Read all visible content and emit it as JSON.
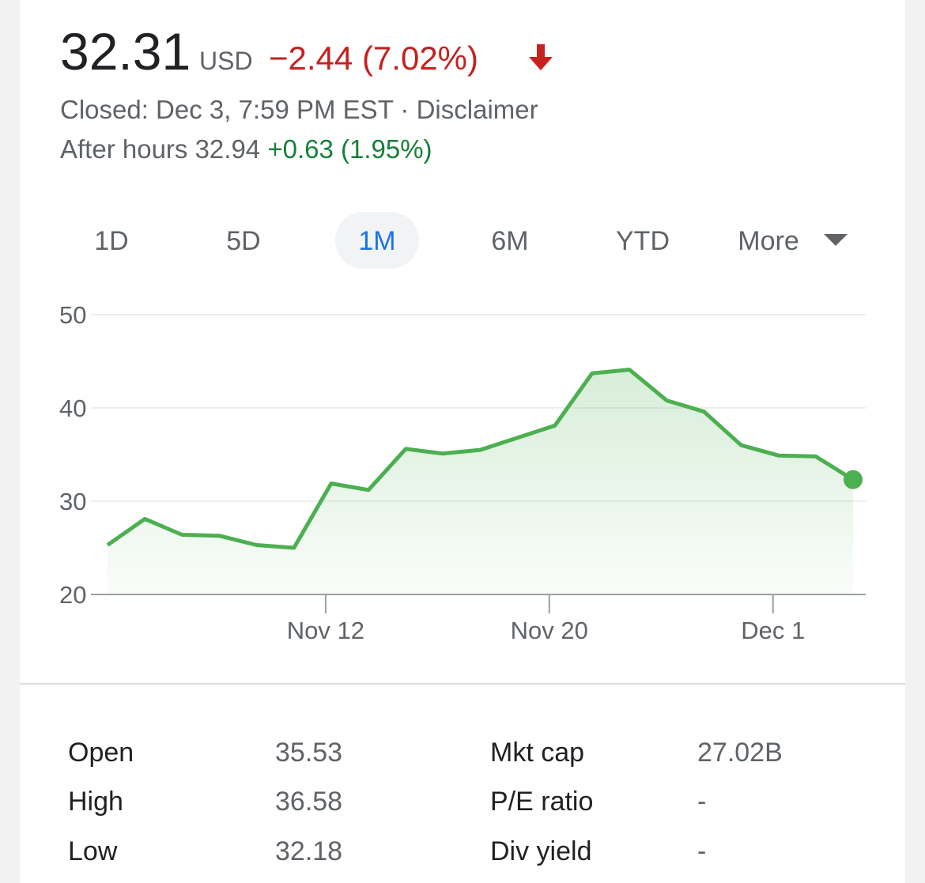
{
  "quote": {
    "price": "32.31",
    "currency": "USD",
    "change": "−2.44 (7.02%)",
    "closed": "Closed: Dec 3, 7:59 PM EST",
    "separator": "·",
    "disclaimer": "Disclaimer",
    "after_hours": "After hours 32.94",
    "after_hours_change": "+0.63 (1.95%)"
  },
  "tabs": {
    "items": [
      "1D",
      "5D",
      "1M",
      "6M",
      "YTD",
      "More"
    ],
    "selected": "1M"
  },
  "chart_data": {
    "type": "line",
    "categories": [
      null,
      null,
      null,
      null,
      null,
      null,
      "Nov 12",
      null,
      null,
      null,
      null,
      null,
      "Nov 20",
      null,
      null,
      null,
      null,
      null,
      "Dec 1",
      null,
      null
    ],
    "values": [
      25.3,
      28.1,
      26.4,
      26.3,
      25.3,
      25.0,
      31.9,
      31.2,
      35.6,
      35.1,
      35.5,
      36.8,
      38.1,
      43.7,
      44.1,
      40.8,
      39.6,
      36.0,
      34.9,
      34.8,
      32.31
    ],
    "color": "#4caf50",
    "ylim": [
      20,
      50
    ],
    "yticks": [
      20,
      30,
      40,
      50
    ],
    "grid": true
  },
  "stats": {
    "rows": [
      [
        "Open",
        "35.53",
        "Mkt cap",
        "27.02B"
      ],
      [
        "High",
        "36.58",
        "P/E ratio",
        "-"
      ],
      [
        "Low",
        "32.18",
        "Div yield",
        "-"
      ]
    ]
  }
}
